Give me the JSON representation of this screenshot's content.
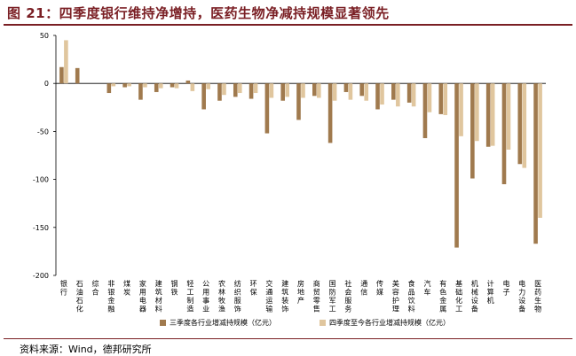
{
  "header": {
    "title": "图 21：四季度银行维持净增持，医药生物净减持规模显著领先"
  },
  "footer": {
    "source": "资料来源：Wind，德邦研究所"
  },
  "colors": {
    "series1": "#a07a4e",
    "series2": "#e0c69e",
    "accent": "#7a1f24"
  },
  "chart_data": {
    "type": "bar",
    "categories": [
      "银行",
      "石油石化",
      "综合",
      "非银金融",
      "煤炭",
      "家用电器",
      "建筑材料",
      "钢铁",
      "轻工制造",
      "公用事业",
      "农林牧渔",
      "纺织服饰",
      "环保",
      "交通运输",
      "建筑装饰",
      "房地产",
      "商贸零售",
      "国防军工",
      "社会服务",
      "通信",
      "传媒",
      "美容护理",
      "食品饮料",
      "汽车",
      "有色金属",
      "基础化工",
      "机械设备",
      "计算机",
      "电子",
      "电力设备",
      "医药生物"
    ],
    "series": [
      {
        "name": "三季度各行业增减持规模（亿元）",
        "values": [
          17,
          16,
          0,
          -10,
          -4,
          -17,
          -9,
          -4,
          3,
          -27,
          -18,
          -14,
          -16,
          -52,
          -18,
          -38,
          -13,
          -62,
          -9,
          -13,
          -27,
          -17,
          -20,
          -57,
          -32,
          -171,
          -99,
          -66,
          -105,
          -84,
          -167
        ]
      },
      {
        "name": "四季度至今各行业增减持规模（亿元）",
        "values": [
          45,
          0,
          0,
          -3,
          -3,
          -4,
          -5,
          -5,
          -8,
          -6,
          -12,
          -10,
          -10,
          -15,
          -14,
          -15,
          -15,
          -18,
          -17,
          -18,
          -22,
          -24,
          -24,
          -30,
          -33,
          -55,
          -60,
          -65,
          -69,
          -88,
          -140
        ]
      }
    ],
    "ylim": [
      -200,
      50
    ],
    "yticks": [
      50,
      0,
      -50,
      -100,
      -150,
      -200
    ],
    "xlabel": "",
    "ylabel": "",
    "grid": false,
    "legend_placement": "bottom"
  }
}
